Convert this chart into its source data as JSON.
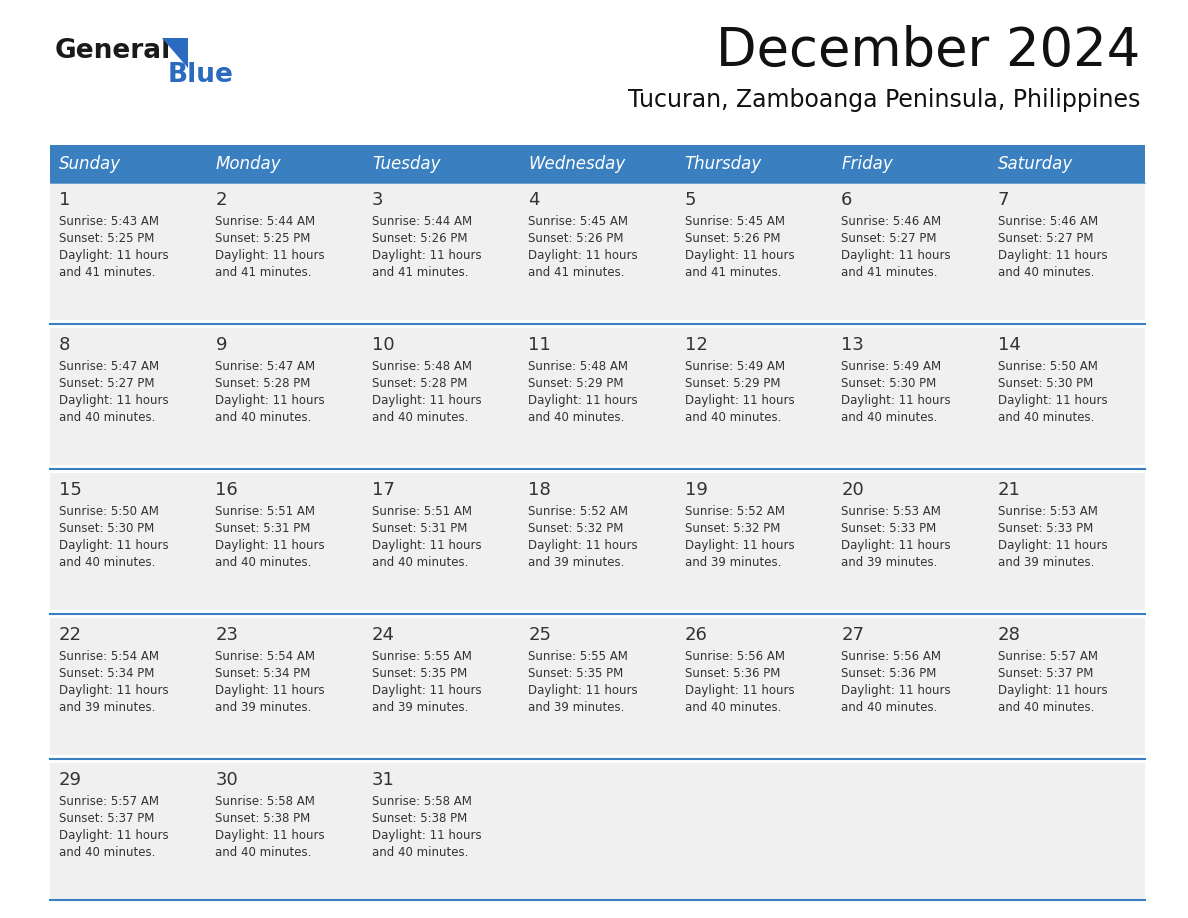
{
  "title": "December 2024",
  "subtitle": "Tucuran, Zamboanga Peninsula, Philippines",
  "header_bg_color": "#3a7fbf",
  "header_text_color": "#ffffff",
  "row_bg": "#f0f0f0",
  "white_bg": "#ffffff",
  "border_color": "#3a7fbf",
  "text_color": "#333333",
  "days_of_week": [
    "Sunday",
    "Monday",
    "Tuesday",
    "Wednesday",
    "Thursday",
    "Friday",
    "Saturday"
  ],
  "calendar": [
    [
      {
        "day": "1",
        "sunrise": "5:43 AM",
        "sunset": "5:25 PM",
        "daylight_h": "11 hours",
        "daylight_m": "and 41 minutes."
      },
      {
        "day": "2",
        "sunrise": "5:44 AM",
        "sunset": "5:25 PM",
        "daylight_h": "11 hours",
        "daylight_m": "and 41 minutes."
      },
      {
        "day": "3",
        "sunrise": "5:44 AM",
        "sunset": "5:26 PM",
        "daylight_h": "11 hours",
        "daylight_m": "and 41 minutes."
      },
      {
        "day": "4",
        "sunrise": "5:45 AM",
        "sunset": "5:26 PM",
        "daylight_h": "11 hours",
        "daylight_m": "and 41 minutes."
      },
      {
        "day": "5",
        "sunrise": "5:45 AM",
        "sunset": "5:26 PM",
        "daylight_h": "11 hours",
        "daylight_m": "and 41 minutes."
      },
      {
        "day": "6",
        "sunrise": "5:46 AM",
        "sunset": "5:27 PM",
        "daylight_h": "11 hours",
        "daylight_m": "and 41 minutes."
      },
      {
        "day": "7",
        "sunrise": "5:46 AM",
        "sunset": "5:27 PM",
        "daylight_h": "11 hours",
        "daylight_m": "and 40 minutes."
      }
    ],
    [
      {
        "day": "8",
        "sunrise": "5:47 AM",
        "sunset": "5:27 PM",
        "daylight_h": "11 hours",
        "daylight_m": "and 40 minutes."
      },
      {
        "day": "9",
        "sunrise": "5:47 AM",
        "sunset": "5:28 PM",
        "daylight_h": "11 hours",
        "daylight_m": "and 40 minutes."
      },
      {
        "day": "10",
        "sunrise": "5:48 AM",
        "sunset": "5:28 PM",
        "daylight_h": "11 hours",
        "daylight_m": "and 40 minutes."
      },
      {
        "day": "11",
        "sunrise": "5:48 AM",
        "sunset": "5:29 PM",
        "daylight_h": "11 hours",
        "daylight_m": "and 40 minutes."
      },
      {
        "day": "12",
        "sunrise": "5:49 AM",
        "sunset": "5:29 PM",
        "daylight_h": "11 hours",
        "daylight_m": "and 40 minutes."
      },
      {
        "day": "13",
        "sunrise": "5:49 AM",
        "sunset": "5:30 PM",
        "daylight_h": "11 hours",
        "daylight_m": "and 40 minutes."
      },
      {
        "day": "14",
        "sunrise": "5:50 AM",
        "sunset": "5:30 PM",
        "daylight_h": "11 hours",
        "daylight_m": "and 40 minutes."
      }
    ],
    [
      {
        "day": "15",
        "sunrise": "5:50 AM",
        "sunset": "5:30 PM",
        "daylight_h": "11 hours",
        "daylight_m": "and 40 minutes."
      },
      {
        "day": "16",
        "sunrise": "5:51 AM",
        "sunset": "5:31 PM",
        "daylight_h": "11 hours",
        "daylight_m": "and 40 minutes."
      },
      {
        "day": "17",
        "sunrise": "5:51 AM",
        "sunset": "5:31 PM",
        "daylight_h": "11 hours",
        "daylight_m": "and 40 minutes."
      },
      {
        "day": "18",
        "sunrise": "5:52 AM",
        "sunset": "5:32 PM",
        "daylight_h": "11 hours",
        "daylight_m": "and 39 minutes."
      },
      {
        "day": "19",
        "sunrise": "5:52 AM",
        "sunset": "5:32 PM",
        "daylight_h": "11 hours",
        "daylight_m": "and 39 minutes."
      },
      {
        "day": "20",
        "sunrise": "5:53 AM",
        "sunset": "5:33 PM",
        "daylight_h": "11 hours",
        "daylight_m": "and 39 minutes."
      },
      {
        "day": "21",
        "sunrise": "5:53 AM",
        "sunset": "5:33 PM",
        "daylight_h": "11 hours",
        "daylight_m": "and 39 minutes."
      }
    ],
    [
      {
        "day": "22",
        "sunrise": "5:54 AM",
        "sunset": "5:34 PM",
        "daylight_h": "11 hours",
        "daylight_m": "and 39 minutes."
      },
      {
        "day": "23",
        "sunrise": "5:54 AM",
        "sunset": "5:34 PM",
        "daylight_h": "11 hours",
        "daylight_m": "and 39 minutes."
      },
      {
        "day": "24",
        "sunrise": "5:55 AM",
        "sunset": "5:35 PM",
        "daylight_h": "11 hours",
        "daylight_m": "and 39 minutes."
      },
      {
        "day": "25",
        "sunrise": "5:55 AM",
        "sunset": "5:35 PM",
        "daylight_h": "11 hours",
        "daylight_m": "and 39 minutes."
      },
      {
        "day": "26",
        "sunrise": "5:56 AM",
        "sunset": "5:36 PM",
        "daylight_h": "11 hours",
        "daylight_m": "and 40 minutes."
      },
      {
        "day": "27",
        "sunrise": "5:56 AM",
        "sunset": "5:36 PM",
        "daylight_h": "11 hours",
        "daylight_m": "and 40 minutes."
      },
      {
        "day": "28",
        "sunrise": "5:57 AM",
        "sunset": "5:37 PM",
        "daylight_h": "11 hours",
        "daylight_m": "and 40 minutes."
      }
    ],
    [
      {
        "day": "29",
        "sunrise": "5:57 AM",
        "sunset": "5:37 PM",
        "daylight_h": "11 hours",
        "daylight_m": "and 40 minutes."
      },
      {
        "day": "30",
        "sunrise": "5:58 AM",
        "sunset": "5:38 PM",
        "daylight_h": "11 hours",
        "daylight_m": "and 40 minutes."
      },
      {
        "day": "31",
        "sunrise": "5:58 AM",
        "sunset": "5:38 PM",
        "daylight_h": "11 hours",
        "daylight_m": "and 40 minutes."
      },
      null,
      null,
      null,
      null
    ]
  ],
  "logo_text1": "General",
  "logo_text2": "Blue",
  "logo_color1": "#1a1a1a",
  "logo_color2": "#2a6abf",
  "title_fontsize": 38,
  "subtitle_fontsize": 17,
  "header_fontsize": 12,
  "day_fontsize": 12,
  "cell_fontsize": 8.5
}
